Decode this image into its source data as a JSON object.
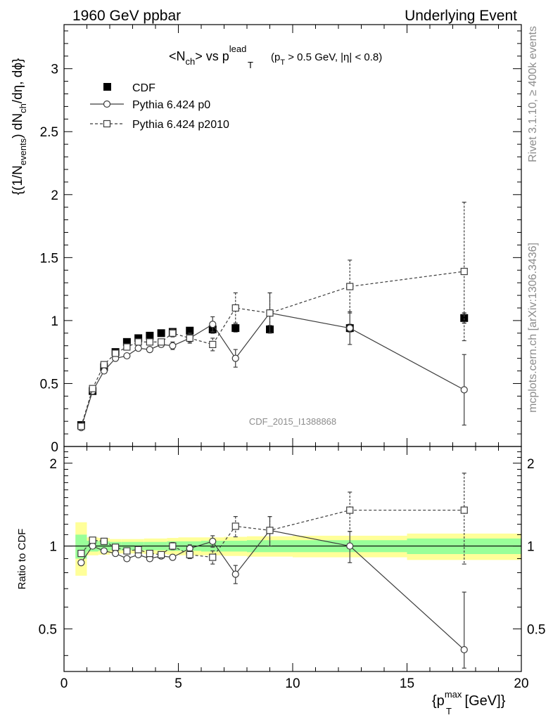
{
  "header": {
    "left": "1960 GeV ppbar",
    "right": "Underlying Event"
  },
  "side_labels": {
    "top": "Rivet 3.1.10, ≥ 400k events",
    "bottom": "mcplots.cern.ch [arXiv:1306.3436]"
  },
  "watermark": "CDF_2015_I1388868",
  "chart_data": [
    {
      "type": "scatter",
      "title": {
        "base": "<N",
        "sub1": "ch",
        "mid": "> vs p",
        "sup": "lead",
        "sub2": "T",
        "cut_a": "(p",
        "cut_sub": "T",
        "cut_b": " > 0.5 GeV, |η| < 0.8)"
      },
      "ylabel": {
        "a": "{(1/N",
        "sub1": "events",
        "b": ") dN",
        "sub2": "ch",
        "c": "/dη, dϕ}"
      },
      "xlim": [
        0,
        20
      ],
      "ylim": [
        0,
        3.35
      ],
      "yticks": [
        0,
        0.5,
        1,
        1.5,
        2,
        2.5,
        3
      ],
      "ytick_labels": [
        "0",
        "0.5",
        "1",
        "1.5",
        "2",
        "2.5",
        "3"
      ],
      "legend_position": "top-left",
      "series": [
        {
          "name": "CDF",
          "marker": "filled-square",
          "color": "#000000",
          "x": [
            0.75,
            1.25,
            1.75,
            2.25,
            2.75,
            3.25,
            3.75,
            4.25,
            4.75,
            5.5,
            6.5,
            7.5,
            9.0,
            12.5,
            17.5
          ],
          "y": [
            0.17,
            0.44,
            0.63,
            0.75,
            0.83,
            0.86,
            0.88,
            0.9,
            0.91,
            0.92,
            0.93,
            0.94,
            0.93,
            0.94,
            1.02
          ],
          "err": [
            0.02,
            0.02,
            0.02,
            0.02,
            0.02,
            0.02,
            0.02,
            0.02,
            0.02,
            0.02,
            0.03,
            0.03,
            0.03,
            0.03,
            0.04
          ]
        },
        {
          "name": "Pythia 6.424 p0",
          "marker": "open-circle",
          "line": "solid",
          "color": "#3c3c3c",
          "x": [
            0.75,
            1.25,
            1.75,
            2.25,
            2.75,
            3.25,
            3.75,
            4.25,
            4.75,
            5.5,
            6.5,
            7.5,
            9.0,
            12.5,
            17.5
          ],
          "y": [
            0.15,
            0.44,
            0.6,
            0.7,
            0.72,
            0.78,
            0.77,
            0.81,
            0.8,
            0.86,
            0.97,
            0.7,
            1.06,
            0.94,
            0.45
          ],
          "err": [
            0.01,
            0.01,
            0.01,
            0.01,
            0.01,
            0.02,
            0.02,
            0.02,
            0.03,
            0.04,
            0.06,
            0.07,
            0.16,
            0.13,
            0.28
          ]
        },
        {
          "name": "Pythia 6.424 p2010",
          "marker": "open-square",
          "line": "dashed",
          "color": "#3c3c3c",
          "x": [
            0.75,
            1.25,
            1.75,
            2.25,
            2.75,
            3.25,
            3.75,
            4.25,
            4.75,
            5.5,
            6.5,
            7.5,
            9.0,
            12.5,
            17.5
          ],
          "y": [
            0.16,
            0.46,
            0.65,
            0.74,
            0.79,
            0.83,
            0.83,
            0.83,
            0.9,
            0.86,
            0.81,
            1.1,
            1.06,
            1.27,
            1.39
          ],
          "err": [
            0.01,
            0.01,
            0.01,
            0.01,
            0.01,
            0.02,
            0.02,
            0.02,
            0.03,
            0.03,
            0.05,
            0.12,
            0.16,
            0.21,
            0.55
          ]
        }
      ]
    },
    {
      "type": "scatter",
      "xlabel": {
        "a": "{p",
        "sup": "max",
        "sub": "T",
        "b": " [GeV]}"
      },
      "ylabel": "Ratio to CDF",
      "xlim": [
        0,
        20
      ],
      "ylim": [
        0.35,
        2.3
      ],
      "xticks": [
        0,
        5,
        10,
        15,
        20
      ],
      "xtick_labels": [
        "0",
        "5",
        "10",
        "15",
        "20"
      ],
      "yticks": [
        0.5,
        1,
        2
      ],
      "ytick_labels": [
        "0.5",
        "1",
        "2"
      ],
      "reference_line": 1,
      "bands": {
        "green": "#99ff99",
        "yellow": "#ffff99",
        "bins": [
          {
            "x0": 0.5,
            "x1": 1.0,
            "inner": 0.1,
            "outer": 0.22
          },
          {
            "x0": 1.0,
            "x1": 1.5,
            "inner": 0.045,
            "outer": 0.075
          },
          {
            "x0": 1.5,
            "x1": 2.0,
            "inner": 0.04,
            "outer": 0.07
          },
          {
            "x0": 2.0,
            "x1": 2.5,
            "inner": 0.035,
            "outer": 0.06
          },
          {
            "x0": 2.5,
            "x1": 3.0,
            "inner": 0.035,
            "outer": 0.06
          },
          {
            "x0": 3.0,
            "x1": 3.5,
            "inner": 0.035,
            "outer": 0.06
          },
          {
            "x0": 3.5,
            "x1": 4.0,
            "inner": 0.035,
            "outer": 0.065
          },
          {
            "x0": 4.0,
            "x1": 4.5,
            "inner": 0.035,
            "outer": 0.065
          },
          {
            "x0": 4.5,
            "x1": 5.0,
            "inner": 0.04,
            "outer": 0.07
          },
          {
            "x0": 5.0,
            "x1": 6.0,
            "inner": 0.04,
            "outer": 0.075
          },
          {
            "x0": 6.0,
            "x1": 7.0,
            "inner": 0.045,
            "outer": 0.075
          },
          {
            "x0": 7.0,
            "x1": 8.0,
            "inner": 0.045,
            "outer": 0.08
          },
          {
            "x0": 8.0,
            "x1": 10.0,
            "inner": 0.05,
            "outer": 0.085
          },
          {
            "x0": 10.0,
            "x1": 15.0,
            "inner": 0.05,
            "outer": 0.09
          },
          {
            "x0": 15.0,
            "x1": 20.0,
            "inner": 0.065,
            "outer": 0.11
          }
        ]
      },
      "series": [
        {
          "name": "Pythia 6.424 p0",
          "marker": "open-circle",
          "line": "solid",
          "x": [
            0.75,
            1.25,
            1.75,
            2.25,
            2.75,
            3.25,
            3.75,
            4.25,
            4.75,
            5.5,
            6.5,
            7.5,
            9.0,
            12.5,
            17.5
          ],
          "y": [
            0.87,
            1.0,
            0.96,
            0.94,
            0.9,
            0.93,
            0.9,
            0.92,
            0.91,
            0.98,
            1.04,
            0.79,
            1.14,
            1.0,
            0.42
          ],
          "err": [
            0.01,
            0.01,
            0.01,
            0.01,
            0.01,
            0.015,
            0.015,
            0.02,
            0.02,
            0.03,
            0.05,
            0.06,
            0.14,
            0.13,
            0.26
          ]
        },
        {
          "name": "Pythia 6.424 p2010",
          "marker": "open-square",
          "line": "dashed",
          "x": [
            0.75,
            1.25,
            1.75,
            2.25,
            2.75,
            3.25,
            3.75,
            4.25,
            4.75,
            5.5,
            6.5,
            7.5,
            9.0,
            12.5,
            17.5
          ],
          "y": [
            0.94,
            1.05,
            1.04,
            0.99,
            0.96,
            0.97,
            0.94,
            0.93,
            1.0,
            0.93,
            0.91,
            1.18,
            1.14,
            1.35,
            1.35
          ],
          "err": [
            0.01,
            0.01,
            0.01,
            0.01,
            0.01,
            0.015,
            0.015,
            0.02,
            0.03,
            0.03,
            0.05,
            0.1,
            0.14,
            0.22,
            0.49
          ]
        }
      ]
    }
  ]
}
